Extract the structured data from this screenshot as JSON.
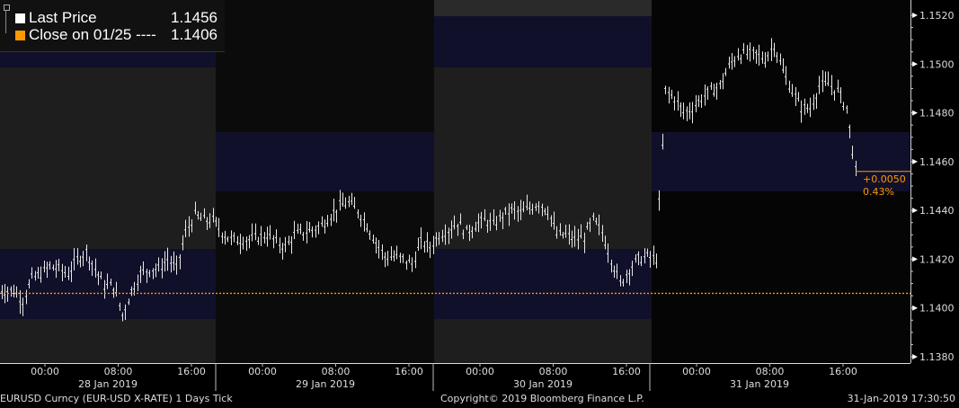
{
  "legend": {
    "last_price_label": "Last Price",
    "last_price_value": "1.1456",
    "close_label": "Close on 01/25 ----",
    "close_value": "1.1406"
  },
  "change_box": {
    "abs": "+0.0050",
    "pct": "0.43%"
  },
  "footer": {
    "left": "EURUSD Curncy (EUR-USD X-RATE) 1 Days  Tick",
    "center": "Copyright© 2019 Bloomberg Finance L.P.",
    "right": "31-Jan-2019 17:30:50"
  },
  "colors": {
    "last_price": "#ffffff",
    "close": "#ff9900",
    "change_text": "#ff9900"
  },
  "chart_data": {
    "type": "ohlc-tick",
    "ylim": [
      1.138,
      1.152
    ],
    "y_ticks": [
      "1.1520",
      "1.1500",
      "1.1480",
      "1.1460",
      "1.1440",
      "1.1420",
      "1.1400",
      "1.1380"
    ],
    "x_tick_labels": [
      "00:00",
      "08:00",
      "16:00"
    ],
    "days": [
      "28 Jan 2019",
      "29 Jan 2019",
      "30 Jan 2019",
      "31 Jan 2019"
    ],
    "reference_close": 1.1406,
    "last_price": 1.1456,
    "start": "27 Jan 2019 19:00",
    "interval_minutes": 60,
    "prices": [
      1.1409,
      1.1407,
      1.1407,
      1.1403,
      1.1412,
      1.1414,
      1.1417,
      1.1416,
      1.1414,
      1.142,
      1.1423,
      1.1416,
      1.1409,
      1.1409,
      1.1397,
      1.1407,
      1.1414,
      1.1416,
      1.1416,
      1.142,
      1.1416,
      1.1431,
      1.1438,
      1.1436,
      1.1436,
      1.1431,
      1.1428,
      1.1428,
      1.1428,
      1.1429,
      1.143,
      1.1427,
      1.1425,
      1.143,
      1.1431,
      1.1432,
      1.1434,
      1.1438,
      1.1442,
      1.1443,
      1.144,
      1.1434,
      1.1427,
      1.1421,
      1.1421,
      1.142,
      1.1418,
      1.1427,
      1.1425,
      1.143,
      1.1432,
      1.1435,
      1.1431,
      1.1434,
      1.1436,
      1.1434,
      1.1438,
      1.144,
      1.1439,
      1.1441,
      1.1443,
      1.144,
      1.143,
      1.143,
      1.1428,
      1.1429,
      1.1436,
      1.1431,
      1.142,
      1.141,
      1.1416,
      1.142,
      1.1421,
      1.142,
      1.1489,
      1.1486,
      1.148,
      1.1482,
      1.1486,
      1.1489,
      1.1491,
      1.1499,
      1.1504,
      1.1504,
      1.1504,
      1.1502,
      1.1508,
      1.1497,
      1.1489,
      1.1482,
      1.1482,
      1.1491,
      1.1492,
      1.1489,
      1.1482,
      1.1456
    ]
  }
}
